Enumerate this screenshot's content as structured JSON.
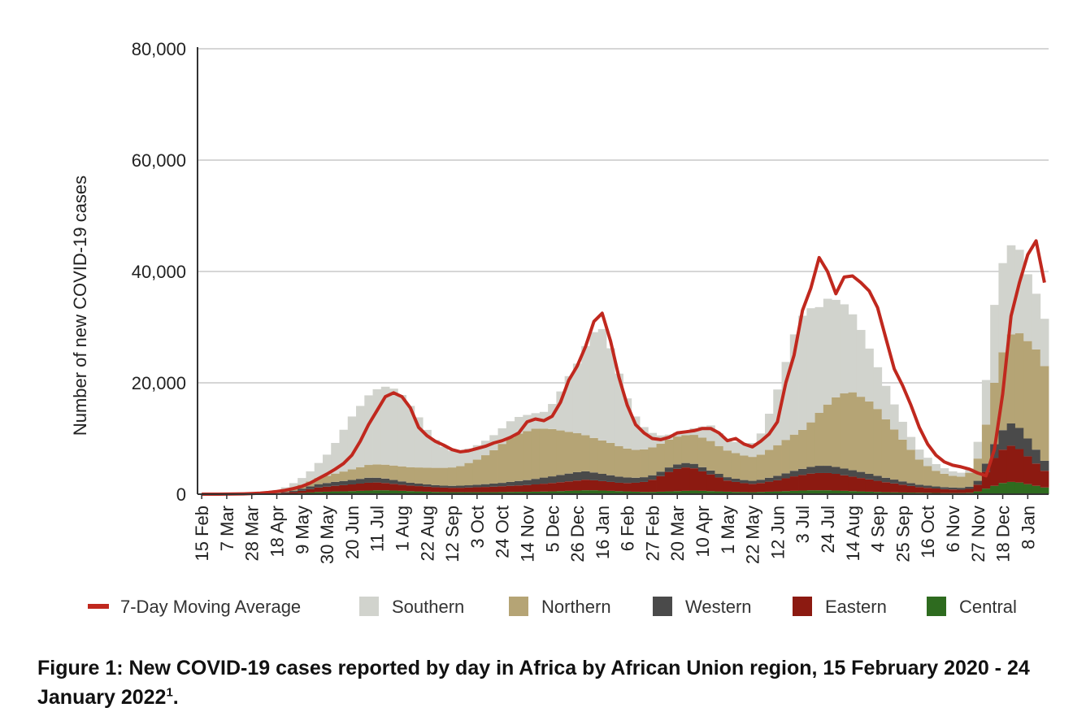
{
  "chart_data": {
    "type": "bar",
    "stacked": true,
    "ylabel": "Number of new COVID-19 cases",
    "xlabel": "",
    "ylim": [
      0,
      80000
    ],
    "yticks": [
      0,
      20000,
      40000,
      60000,
      80000
    ],
    "ytick_labels": [
      "0",
      "20,000",
      "40,000",
      "60,000",
      "80,000"
    ],
    "grid": true,
    "legend_position": "bottom",
    "x_tick_labels": [
      "15 Feb",
      "7 Mar",
      "28 Mar",
      "18 Apr",
      "9 May",
      "30 May",
      "20 Jun",
      "11 Jul",
      "1 Aug",
      "22 Aug",
      "12 Sep",
      "3 Oct",
      "24 Oct",
      "14 Nov",
      "5 Dec",
      "26 Dec",
      "16 Jan",
      "6 Feb",
      "27 Feb",
      "20 Mar",
      "10 Apr",
      "1 May",
      "22 May",
      "12 Jun",
      "3 Jul",
      "24 Jul",
      "14 Aug",
      "4 Sep",
      "25 Sep",
      "16 Oct",
      "6 Nov",
      "27 Nov",
      "18 Dec",
      "8 Jan"
    ],
    "x_tick_index": [
      0,
      3,
      6,
      9,
      12,
      15,
      18,
      21,
      24,
      27,
      30,
      33,
      36,
      39,
      42,
      45,
      48,
      51,
      54,
      57,
      60,
      63,
      66,
      69,
      72,
      75,
      78,
      81,
      84,
      87,
      90,
      93,
      96,
      99
    ],
    "x_ticks_note": "Categories are weeks; each tick label marks every third week starting 15 Feb 2020.",
    "categories_count": 102,
    "series": [
      {
        "name": "Central",
        "color": "#2e6b1f",
        "type": "bar",
        "values": [
          0,
          0,
          0,
          0,
          0,
          0,
          0,
          10,
          20,
          40,
          80,
          130,
          200,
          300,
          400,
          450,
          500,
          520,
          550,
          600,
          650,
          700,
          700,
          650,
          600,
          550,
          500,
          450,
          400,
          380,
          350,
          350,
          350,
          350,
          350,
          350,
          380,
          400,
          420,
          430,
          450,
          480,
          500,
          550,
          600,
          650,
          700,
          700,
          650,
          600,
          550,
          500,
          450,
          400,
          400,
          450,
          500,
          550,
          600,
          650,
          600,
          550,
          500,
          450,
          400,
          380,
          350,
          400,
          450,
          500,
          550,
          600,
          650,
          700,
          700,
          700,
          650,
          600,
          550,
          500,
          450,
          400,
          350,
          320,
          300,
          280,
          260,
          240,
          220,
          200,
          200,
          200,
          250,
          500,
          1000,
          1500,
          2000,
          2200,
          2100,
          1800,
          1500,
          1200
        ]
      },
      {
        "name": "Eastern",
        "color": "#8c1a11",
        "type": "bar",
        "values": [
          0,
          0,
          0,
          0,
          0,
          0,
          10,
          20,
          40,
          80,
          150,
          250,
          400,
          600,
          800,
          900,
          1000,
          1100,
          1200,
          1300,
          1400,
          1400,
          1300,
          1200,
          1100,
          1000,
          950,
          900,
          850,
          800,
          800,
          800,
          850,
          900,
          950,
          1000,
          1050,
          1100,
          1150,
          1200,
          1300,
          1400,
          1500,
          1600,
          1700,
          1800,
          1900,
          1800,
          1700,
          1600,
          1500,
          1500,
          1600,
          1800,
          2200,
          2800,
          3500,
          4000,
          4200,
          4000,
          3500,
          3000,
          2500,
          2000,
          1800,
          1600,
          1500,
          1600,
          1800,
          2000,
          2300,
          2600,
          2800,
          3000,
          3100,
          3100,
          3000,
          2800,
          2600,
          2400,
          2200,
          2000,
          1800,
          1600,
          1400,
          1200,
          1000,
          900,
          800,
          700,
          650,
          600,
          700,
          1200,
          3000,
          5000,
          6000,
          6500,
          6000,
          5000,
          4000,
          3000
        ]
      },
      {
        "name": "Western",
        "color": "#4a4a4a",
        "type": "bar",
        "values": [
          0,
          0,
          0,
          0,
          0,
          0,
          10,
          20,
          40,
          80,
          150,
          250,
          400,
          500,
          600,
          650,
          700,
          750,
          800,
          850,
          900,
          850,
          800,
          700,
          600,
          500,
          450,
          400,
          380,
          350,
          350,
          380,
          400,
          450,
          500,
          550,
          600,
          700,
          800,
          900,
          1000,
          1100,
          1200,
          1300,
          1400,
          1500,
          1500,
          1400,
          1300,
          1200,
          1100,
          1000,
          900,
          850,
          800,
          800,
          800,
          800,
          800,
          800,
          750,
          700,
          650,
          600,
          580,
          560,
          550,
          600,
          700,
          800,
          900,
          1000,
          1100,
          1200,
          1300,
          1300,
          1250,
          1200,
          1150,
          1100,
          1000,
          900,
          800,
          700,
          600,
          500,
          450,
          400,
          380,
          360,
          350,
          350,
          400,
          700,
          1500,
          2500,
          3500,
          4000,
          3800,
          3200,
          2500,
          1800
        ]
      },
      {
        "name": "Northern",
        "color": "#b5a475",
        "type": "bar",
        "values": [
          0,
          0,
          0,
          0,
          0,
          50,
          100,
          150,
          250,
          350,
          450,
          550,
          700,
          900,
          1100,
          1300,
          1500,
          1700,
          1900,
          2100,
          2300,
          2400,
          2500,
          2600,
          2700,
          2800,
          2900,
          3000,
          3100,
          3200,
          3300,
          3500,
          4000,
          4500,
          5200,
          6000,
          7000,
          8000,
          8500,
          8800,
          9000,
          8800,
          8500,
          8000,
          7500,
          7000,
          6500,
          6200,
          6000,
          5800,
          5500,
          5200,
          5000,
          5000,
          5000,
          5000,
          5000,
          5000,
          5000,
          5200,
          5300,
          5300,
          5000,
          4800,
          4600,
          4400,
          4300,
          4500,
          5000,
          5500,
          6000,
          6500,
          7000,
          8000,
          9500,
          11000,
          12500,
          13500,
          14000,
          13500,
          13000,
          12000,
          10500,
          9000,
          7500,
          6000,
          4500,
          3500,
          2800,
          2400,
          2100,
          2000,
          2500,
          4000,
          7000,
          11000,
          14000,
          16000,
          17000,
          17500,
          18000,
          17000
        ]
      },
      {
        "name": "Southern",
        "color": "#d1d3cd",
        "type": "bar",
        "values": [
          0,
          0,
          0,
          0,
          0,
          0,
          20,
          50,
          100,
          200,
          400,
          800,
          1200,
          1800,
          2700,
          3800,
          5500,
          7500,
          9500,
          11000,
          12500,
          13500,
          14000,
          13800,
          12800,
          11000,
          9000,
          6800,
          5000,
          3800,
          3000,
          2700,
          2600,
          2600,
          2600,
          2700,
          2800,
          2900,
          3000,
          2900,
          2800,
          3000,
          4500,
          7000,
          10000,
          12500,
          16000,
          19000,
          20000,
          17000,
          13000,
          9000,
          6000,
          4000,
          2600,
          1500,
          900,
          700,
          800,
          1200,
          2000,
          2800,
          2300,
          2000,
          2000,
          2200,
          2500,
          3800,
          6500,
          10000,
          14000,
          18000,
          20500,
          20500,
          19000,
          19000,
          17500,
          16000,
          14000,
          12000,
          9500,
          7500,
          6000,
          4500,
          3200,
          2300,
          1800,
          1500,
          1200,
          1000,
          800,
          700,
          800,
          3000,
          8000,
          14000,
          16000,
          16000,
          15000,
          12000,
          10000,
          8500
        ]
      },
      {
        "name": "7-Day Moving Average",
        "color": "#c0281e",
        "type": "line",
        "values": [
          0,
          0,
          0,
          10,
          30,
          60,
          110,
          180,
          300,
          480,
          700,
          1000,
          1400,
          2000,
          2800,
          3600,
          4500,
          5500,
          7000,
          9500,
          12500,
          15000,
          17500,
          18200,
          17500,
          15500,
          12000,
          10500,
          9500,
          8800,
          8000,
          7600,
          7800,
          8200,
          8600,
          9200,
          9600,
          10200,
          11000,
          13000,
          13500,
          13200,
          14000,
          16500,
          20500,
          23000,
          26500,
          31000,
          32500,
          27500,
          21000,
          16000,
          12500,
          11000,
          10000,
          9800,
          10200,
          11000,
          11200,
          11400,
          11800,
          11800,
          11000,
          9600,
          10000,
          9000,
          8500,
          9500,
          10800,
          13000,
          20000,
          25000,
          33000,
          37000,
          42500,
          40000,
          36000,
          39000,
          39200,
          38000,
          36500,
          33500,
          28000,
          22500,
          19500,
          16000,
          12000,
          9000,
          7000,
          5800,
          5200,
          4900,
          4500,
          3800,
          3300,
          8000,
          18000,
          32000,
          38000,
          43000,
          45500,
          38000
        ]
      }
    ]
  },
  "legend": {
    "items": [
      {
        "label": "7-Day Moving Average",
        "color": "#c0281e",
        "kind": "line"
      },
      {
        "label": "Southern",
        "color": "#d1d3cd",
        "kind": "box"
      },
      {
        "label": "Northern",
        "color": "#b5a475",
        "kind": "box"
      },
      {
        "label": "Western",
        "color": "#4a4a4a",
        "kind": "box"
      },
      {
        "label": "Eastern",
        "color": "#8c1a11",
        "kind": "box"
      },
      {
        "label": "Central",
        "color": "#2e6b1f",
        "kind": "box"
      }
    ]
  },
  "caption": {
    "text": "Figure 1:  New COVID-19 cases reported by day in Africa by African Union region, 15 February 2020 - 24 January 2022",
    "footnote_marker": "1",
    "end": "."
  }
}
